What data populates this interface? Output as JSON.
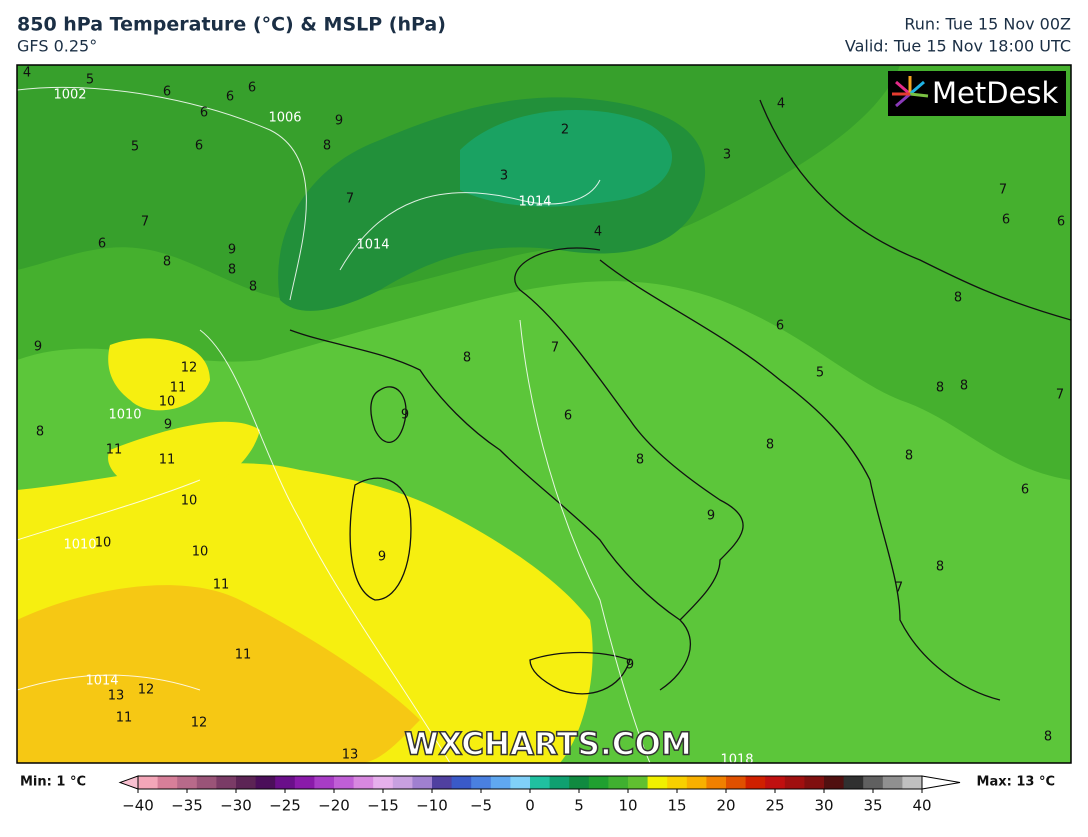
{
  "header": {
    "title": "850 hPa Temperature (°C) & MSLP (hPa)",
    "subtitle": "GFS 0.25°",
    "run": "Run: Tue 15 Nov 00Z",
    "valid": "Valid: Tue 15 Nov 18:00 UTC"
  },
  "map": {
    "logo": "MetDesk",
    "watermark": "WXCHARTS.COM",
    "temperature_labels": [
      4,
      5,
      6,
      6,
      6,
      6,
      5,
      6,
      7,
      6,
      8,
      9,
      8,
      8,
      9,
      8,
      7,
      3,
      2,
      4,
      3,
      4,
      7,
      6,
      6,
      8,
      6,
      5,
      8,
      8,
      7,
      8,
      6,
      7,
      8,
      9,
      6,
      8,
      8,
      9,
      9,
      7,
      8,
      9,
      8,
      9,
      8,
      12,
      11,
      10,
      9,
      11,
      11,
      10,
      10,
      10,
      11,
      11,
      13,
      12,
      11,
      12,
      13
    ],
    "isobar_labels": [
      1002,
      1006,
      1014,
      1014,
      1018,
      1010,
      1014,
      1010
    ]
  },
  "colorbar": {
    "min_label": "Min: 1 °C",
    "max_label": "Max: 13 °C",
    "lim": [
      -40,
      40
    ],
    "ticks": [
      {
        "value": -40,
        "label": "−40"
      },
      {
        "value": -35,
        "label": "−35"
      },
      {
        "value": -30,
        "label": "−30"
      },
      {
        "value": -25,
        "label": "−25"
      },
      {
        "value": -20,
        "label": "−20"
      },
      {
        "value": -15,
        "label": "−15"
      },
      {
        "value": -10,
        "label": "−10"
      },
      {
        "value": -5,
        "label": "−5"
      },
      0,
      5,
      10,
      15,
      20,
      25,
      30,
      35,
      40
    ],
    "colors": [
      "#f4a6b8",
      "#d77f99",
      "#b86a8a",
      "#9a5478",
      "#7a3b66",
      "#5c2455",
      "#4b0f5a",
      "#6a0f8a",
      "#8a1aaa",
      "#a83cc6",
      "#c05fd6",
      "#d888e0",
      "#e6b0ec",
      "#c8a0e0",
      "#a080d0",
      "#5040a0",
      "#3a5ac8",
      "#4a80e0",
      "#60a8f0",
      "#80d0f8",
      "#20c0a0",
      "#10a070",
      "#108a40",
      "#20a030",
      "#40b030",
      "#60c030",
      "#f0f000",
      "#f8d000",
      "#f8b000",
      "#f08000",
      "#e05000",
      "#d02000",
      "#c01010",
      "#a01010",
      "#801010",
      "#501010",
      "#303030",
      "#606060",
      "#909090",
      "#c0c0c0"
    ]
  }
}
